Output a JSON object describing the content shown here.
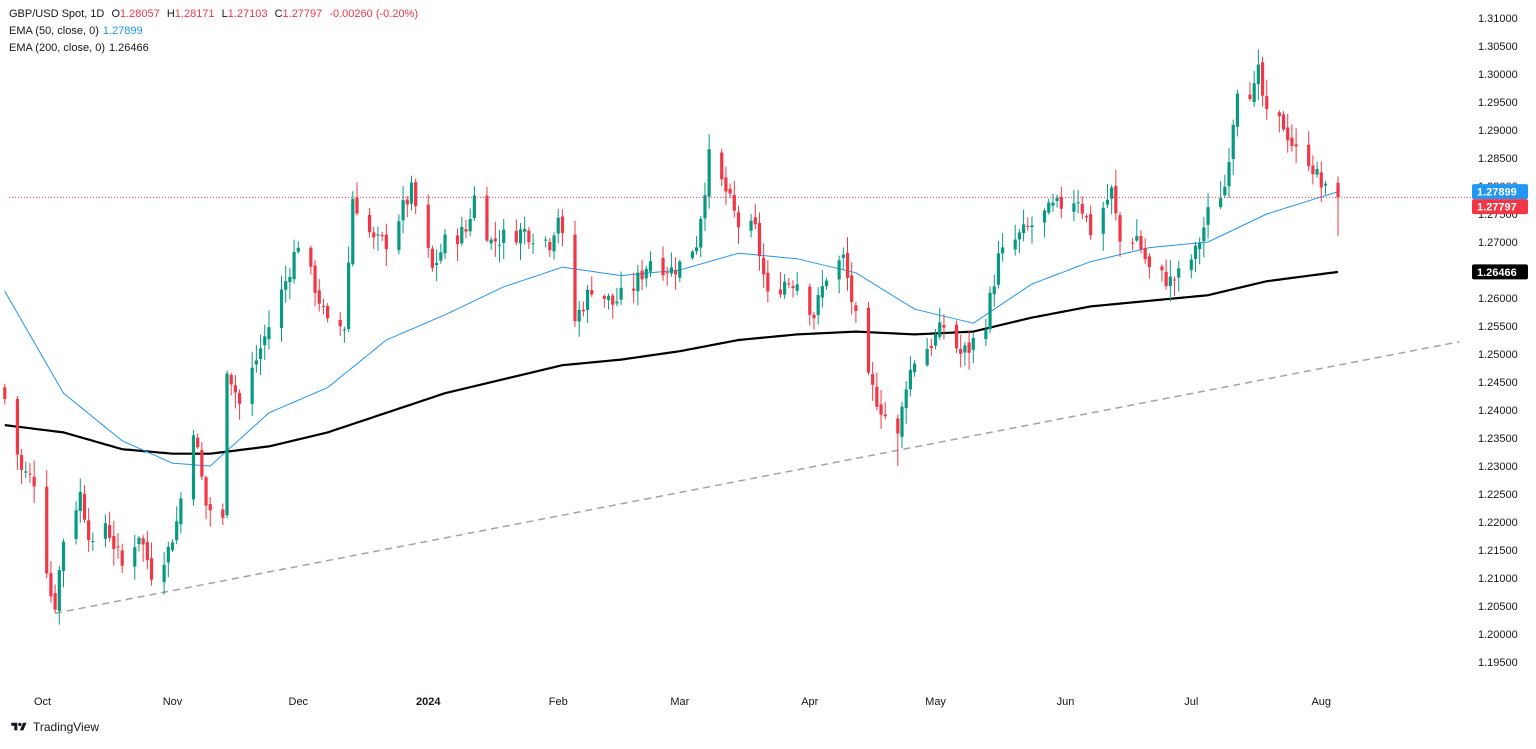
{
  "legend": {
    "symbol": "GBP/USD Spot, 1D",
    "open_label": "O",
    "open": "1.28057",
    "high_label": "H",
    "high": "1.28171",
    "low_label": "L",
    "low": "1.27103",
    "close_label": "C",
    "close": "1.27797",
    "change": "-0.00260 (-0.20%)",
    "ema50_label": "EMA (50, close, 0)",
    "ema50_value": "1.27899",
    "ema200_label": "EMA (200, close, 0)",
    "ema200_value": "1.26466"
  },
  "brand": {
    "name": "TradingView"
  },
  "colors": {
    "up": "#089981",
    "down": "#f23645",
    "ema50": "#2196f3",
    "ema200": "#000000",
    "trendline": "#a3a3a3",
    "price_line": "#f23645",
    "axis_text": "#131722",
    "grid": "#ffffff"
  },
  "chart_data": {
    "type": "candlestick",
    "y_range": [
      1.19,
      1.31
    ],
    "y_ticks": [
      "1.31000",
      "1.30500",
      "1.30000",
      "1.29500",
      "1.29000",
      "1.28500",
      "1.28000",
      "1.27500",
      "1.27000",
      "1.26500",
      "1.26000",
      "1.25500",
      "1.25000",
      "1.24500",
      "1.24000",
      "1.23500",
      "1.23000",
      "1.22500",
      "1.22000",
      "1.21500",
      "1.21000",
      "1.20500",
      "1.20000",
      "1.19500"
    ],
    "x_range": [
      "2023-09-23",
      "2024-09-05"
    ],
    "x_ticks": [
      {
        "date": "2023-10-01",
        "label": "Oct"
      },
      {
        "date": "2023-11-01",
        "label": "Nov"
      },
      {
        "date": "2023-12-01",
        "label": "Dec"
      },
      {
        "date": "2024-01-01",
        "label": "2024"
      },
      {
        "date": "2024-02-01",
        "label": "Feb"
      },
      {
        "date": "2024-03-01",
        "label": "Mar"
      },
      {
        "date": "2024-04-01",
        "label": "Apr"
      },
      {
        "date": "2024-05-01",
        "label": "May"
      },
      {
        "date": "2024-06-01",
        "label": "Jun"
      },
      {
        "date": "2024-07-01",
        "label": "Jul"
      },
      {
        "date": "2024-08-01",
        "label": "Aug"
      }
    ],
    "price_badges": [
      {
        "label": "1.27899",
        "value": 1.27899,
        "color": "#2196f3"
      },
      {
        "label": "1.27797",
        "value": 1.27797,
        "color": "#f23645"
      },
      {
        "label": "1.26466",
        "value": 1.26466,
        "color": "#000000"
      }
    ],
    "current_price": 1.27797,
    "trendline": {
      "points": [
        [
          "2023-10-04",
          1.2037
        ],
        [
          "2024-09-03",
          1.2522
        ]
      ],
      "style": "dashed"
    },
    "ema50_anchors": [
      [
        "2023-09-22",
        1.2612
      ],
      [
        "2023-10-06",
        1.243
      ],
      [
        "2023-10-20",
        1.2345
      ],
      [
        "2023-11-01",
        1.2305
      ],
      [
        "2023-11-10",
        1.23
      ],
      [
        "2023-11-24",
        1.2395
      ],
      [
        "2023-12-08",
        1.244
      ],
      [
        "2023-12-22",
        1.2525
      ],
      [
        "2024-01-05",
        1.257
      ],
      [
        "2024-01-19",
        1.262
      ],
      [
        "2024-02-02",
        1.2655
      ],
      [
        "2024-02-16",
        1.264
      ],
      [
        "2024-03-01",
        1.265
      ],
      [
        "2024-03-15",
        1.268
      ],
      [
        "2024-03-29",
        1.267
      ],
      [
        "2024-04-12",
        1.2645
      ],
      [
        "2024-04-26",
        1.258
      ],
      [
        "2024-05-10",
        1.2555
      ],
      [
        "2024-05-24",
        1.2625
      ],
      [
        "2024-06-07",
        1.2665
      ],
      [
        "2024-06-21",
        1.269
      ],
      [
        "2024-07-05",
        1.27
      ],
      [
        "2024-07-19",
        1.275
      ],
      [
        "2024-08-05",
        1.27899
      ]
    ],
    "ema200_anchors": [
      [
        "2023-09-22",
        1.2373
      ],
      [
        "2023-10-06",
        1.236
      ],
      [
        "2023-10-20",
        1.233
      ],
      [
        "2023-11-01",
        1.2322
      ],
      [
        "2023-11-10",
        1.2322
      ],
      [
        "2023-11-24",
        1.2335
      ],
      [
        "2023-12-08",
        1.236
      ],
      [
        "2023-12-22",
        1.2395
      ],
      [
        "2024-01-05",
        1.243
      ],
      [
        "2024-01-19",
        1.2455
      ],
      [
        "2024-02-02",
        1.248
      ],
      [
        "2024-02-16",
        1.249
      ],
      [
        "2024-03-01",
        1.2505
      ],
      [
        "2024-03-15",
        1.2525
      ],
      [
        "2024-03-29",
        1.2535
      ],
      [
        "2024-04-12",
        1.254
      ],
      [
        "2024-04-26",
        1.2535
      ],
      [
        "2024-05-10",
        1.254
      ],
      [
        "2024-05-24",
        1.2565
      ],
      [
        "2024-06-07",
        1.2585
      ],
      [
        "2024-06-21",
        1.2595
      ],
      [
        "2024-07-05",
        1.2605
      ],
      [
        "2024-07-19",
        1.263
      ],
      [
        "2024-08-05",
        1.26466
      ]
    ],
    "close_anchors": [
      [
        "2023-09-22",
        1.242
      ],
      [
        "2023-09-26",
        1.229
      ],
      [
        "2023-09-29",
        1.2275
      ],
      [
        "2023-10-03",
        1.207
      ],
      [
        "2023-10-04",
        1.2055
      ],
      [
        "2023-10-06",
        1.217
      ],
      [
        "2023-10-10",
        1.225
      ],
      [
        "2023-10-13",
        1.215
      ],
      [
        "2023-10-16",
        1.22
      ],
      [
        "2023-10-20",
        1.212
      ],
      [
        "2023-10-24",
        1.218
      ],
      [
        "2023-10-27",
        1.211
      ],
      [
        "2023-10-31",
        1.215
      ],
      [
        "2023-11-02",
        1.22
      ],
      [
        "2023-11-06",
        1.237
      ],
      [
        "2023-11-09",
        1.223
      ],
      [
        "2023-11-13",
        1.22
      ],
      [
        "2023-11-14",
        1.248
      ],
      [
        "2023-11-17",
        1.241
      ],
      [
        "2023-11-22",
        1.251
      ],
      [
        "2023-11-28",
        1.263
      ],
      [
        "2023-12-01",
        1.27
      ],
      [
        "2023-12-05",
        1.262
      ],
      [
        "2023-12-08",
        1.255
      ],
      [
        "2023-12-12",
        1.255
      ],
      [
        "2023-12-14",
        1.278
      ],
      [
        "2023-12-19",
        1.27
      ],
      [
        "2023-12-22",
        1.27
      ],
      [
        "2023-12-28",
        1.279
      ],
      [
        "2024-01-02",
        1.265
      ],
      [
        "2024-01-05",
        1.27
      ],
      [
        "2024-01-10",
        1.272
      ],
      [
        "2024-01-12",
        1.278
      ],
      [
        "2024-01-16",
        1.27
      ],
      [
        "2024-01-19",
        1.271
      ],
      [
        "2024-01-24",
        1.272
      ],
      [
        "2024-01-30",
        1.27
      ],
      [
        "2024-02-01",
        1.275
      ],
      [
        "2024-02-05",
        1.256
      ],
      [
        "2024-02-09",
        1.262
      ],
      [
        "2024-02-14",
        1.259
      ],
      [
        "2024-02-19",
        1.262
      ],
      [
        "2024-02-23",
        1.267
      ],
      [
        "2024-02-28",
        1.265
      ],
      [
        "2024-03-01",
        1.266
      ],
      [
        "2024-03-05",
        1.27
      ],
      [
        "2024-03-08",
        1.285
      ],
      [
        "2024-03-12",
        1.279
      ],
      [
        "2024-03-15",
        1.273
      ],
      [
        "2024-03-19",
        1.272
      ],
      [
        "2024-03-22",
        1.26
      ],
      [
        "2024-03-26",
        1.263
      ],
      [
        "2024-03-29",
        1.263
      ],
      [
        "2024-04-02",
        1.257
      ],
      [
        "2024-04-05",
        1.264
      ],
      [
        "2024-04-09",
        1.267
      ],
      [
        "2024-04-12",
        1.256
      ],
      [
        "2024-04-15",
        1.245
      ],
      [
        "2024-04-19",
        1.239
      ],
      [
        "2024-04-22",
        1.235
      ],
      [
        "2024-04-24",
        1.245
      ],
      [
        "2024-04-26",
        1.249
      ],
      [
        "2024-04-30",
        1.252
      ],
      [
        "2024-05-03",
        1.255
      ],
      [
        "2024-05-07",
        1.25
      ],
      [
        "2024-05-09",
        1.251
      ],
      [
        "2024-05-13",
        1.256
      ],
      [
        "2024-05-16",
        1.267
      ],
      [
        "2024-05-21",
        1.271
      ],
      [
        "2024-05-24",
        1.273
      ],
      [
        "2024-05-29",
        1.276
      ],
      [
        "2024-06-04",
        1.278
      ],
      [
        "2024-06-07",
        1.272
      ],
      [
        "2024-06-12",
        1.279
      ],
      [
        "2024-06-14",
        1.27
      ],
      [
        "2024-06-18",
        1.271
      ],
      [
        "2024-06-21",
        1.265
      ],
      [
        "2024-06-26",
        1.263
      ],
      [
        "2024-06-28",
        1.264
      ],
      [
        "2024-07-02",
        1.268
      ],
      [
        "2024-07-05",
        1.275
      ],
      [
        "2024-07-09",
        1.28
      ],
      [
        "2024-07-12",
        1.298
      ],
      [
        "2024-07-16",
        1.297
      ],
      [
        "2024-07-17",
        1.3
      ],
      [
        "2024-07-19",
        1.292
      ],
      [
        "2024-07-23",
        1.291
      ],
      [
        "2024-07-26",
        1.286
      ],
      [
        "2024-07-29",
        1.285
      ],
      [
        "2024-08-01",
        1.28
      ],
      [
        "2024-08-02",
        1.279
      ],
      [
        "2024-08-05",
        1.27797
      ]
    ],
    "last_bar": {
      "date": "2024-08-05",
      "open": 1.28057,
      "high": 1.28171,
      "low": 1.27103,
      "close": 1.27797
    },
    "swing_extremes": [
      {
        "date": "2023-10-04",
        "low": 1.2037
      },
      {
        "date": "2024-03-08",
        "high": 1.2893
      },
      {
        "date": "2024-04-22",
        "low": 1.23
      },
      {
        "date": "2024-07-17",
        "high": 1.3044
      }
    ]
  }
}
